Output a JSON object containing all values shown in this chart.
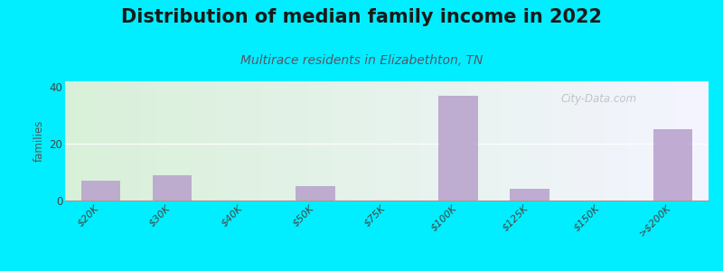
{
  "title": "Distribution of median family income in 2022",
  "subtitle": "Multirace residents in Elizabethton, TN",
  "categories": [
    "$20K",
    "$30K",
    "$40K",
    "$50K",
    "$75K",
    "$100K",
    "$125K",
    "$150K",
    ">$200K"
  ],
  "values": [
    7,
    9,
    0,
    5,
    0,
    37,
    4,
    0,
    25
  ],
  "bar_color": "#b8a0cc",
  "background_color": "#00eeff",
  "grad_left": "#d8f0d8",
  "grad_right": "#f4f4ff",
  "ylabel": "families",
  "ylim": [
    0,
    42
  ],
  "yticks": [
    0,
    20,
    40
  ],
  "title_fontsize": 15,
  "subtitle_fontsize": 10,
  "title_color": "#1a1a1a",
  "subtitle_color": "#555566",
  "watermark": "City-Data.com",
  "grid_color": "#dddddd",
  "tick_label_color": "#444444"
}
